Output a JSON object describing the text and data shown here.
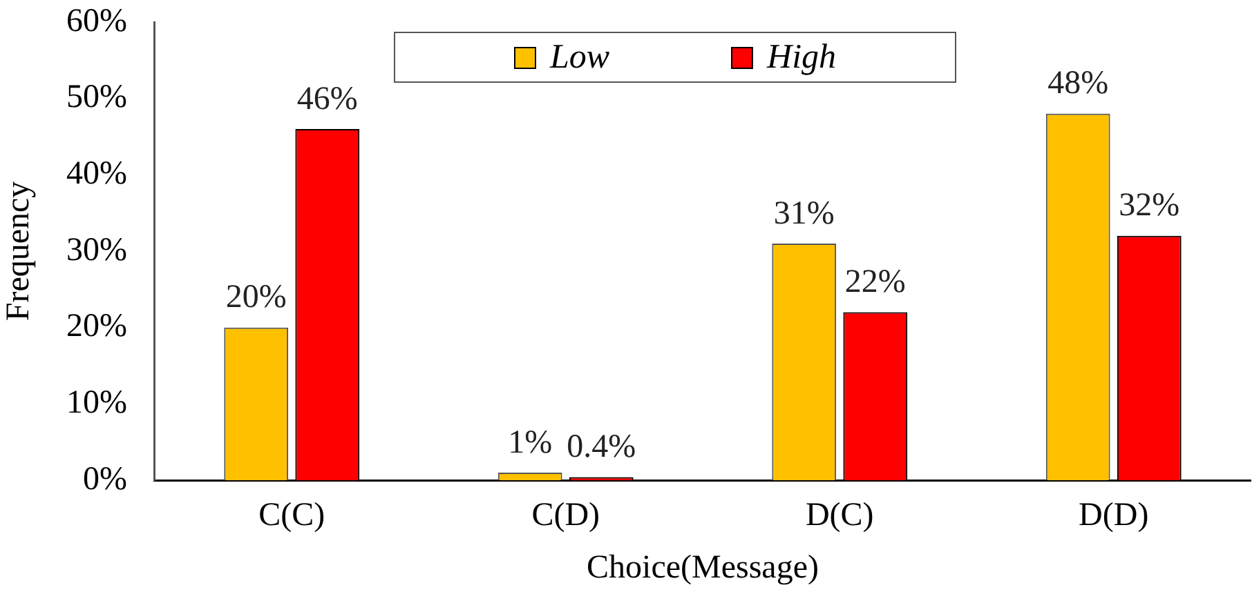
{
  "chart_data": {
    "type": "bar",
    "xlabel": "Choice(Message)",
    "ylabel": "Frequency",
    "categories": [
      "C(C)",
      "C(D)",
      "D(C)",
      "D(D)"
    ],
    "series": [
      {
        "name": "Low",
        "color": "#ffc000",
        "values": [
          20,
          1,
          31,
          48
        ],
        "value_labels": [
          "20%",
          "1%",
          "31%",
          "48%"
        ]
      },
      {
        "name": "High",
        "color": "#ff0000",
        "values": [
          46,
          0.4,
          22,
          32
        ],
        "value_labels": [
          "46%",
          "0.4%",
          "22%",
          "32%"
        ]
      }
    ],
    "ylim": [
      0,
      60
    ],
    "yticks": [
      {
        "value": 0,
        "label": "0%"
      },
      {
        "value": 10,
        "label": "10%"
      },
      {
        "value": 20,
        "label": "20%"
      },
      {
        "value": 30,
        "label": "30%"
      },
      {
        "value": 40,
        "label": "40%"
      },
      {
        "value": 50,
        "label": "50%"
      },
      {
        "value": 60,
        "label": "60%"
      }
    ],
    "grid": false,
    "legend": "top"
  }
}
